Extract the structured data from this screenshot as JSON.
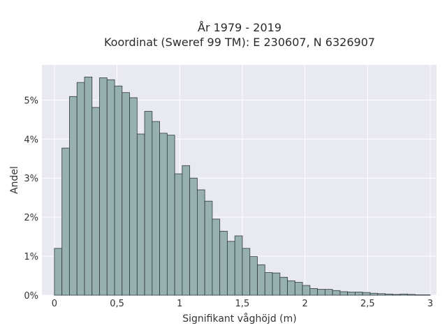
{
  "chart_data": {
    "type": "bar",
    "title": "År 1979 - 2019",
    "subtitle": "Koordinat (Sweref 99 TM): E 230607, N 6326907",
    "xlabel": "Signifikant våghöjd (m)",
    "ylabel": "Andel",
    "xlim": [
      -0.1,
      3.05
    ],
    "ylim": [
      0,
      5.9
    ],
    "x_ticks": [
      0,
      0.5,
      1,
      1.5,
      2,
      2.5,
      3
    ],
    "x_tick_labels": [
      "0",
      "0,5",
      "1",
      "1,5",
      "2",
      "2,5",
      "3"
    ],
    "y_ticks": [
      0,
      1,
      2,
      3,
      4,
      5
    ],
    "y_tick_labels": [
      "0%",
      "1%",
      "2%",
      "3%",
      "4%",
      "5%"
    ],
    "bin_width": 0.06,
    "bin_start": 0.0,
    "values": [
      1.2,
      3.77,
      5.09,
      5.45,
      5.59,
      4.81,
      5.57,
      5.52,
      5.36,
      5.19,
      5.06,
      4.13,
      4.71,
      4.45,
      4.15,
      4.1,
      3.11,
      3.32,
      3.0,
      2.7,
      2.41,
      1.95,
      1.64,
      1.38,
      1.52,
      1.2,
      0.99,
      0.78,
      0.58,
      0.57,
      0.46,
      0.37,
      0.33,
      0.25,
      0.17,
      0.15,
      0.15,
      0.12,
      0.09,
      0.08,
      0.08,
      0.07,
      0.05,
      0.04,
      0.03,
      0.02,
      0.03,
      0.02,
      0.01,
      0.01
    ],
    "grid": true,
    "bar_color": "#97b0b0",
    "bar_edge_color": "#2f3a3a",
    "plot_bg": "#e9e9f1"
  }
}
